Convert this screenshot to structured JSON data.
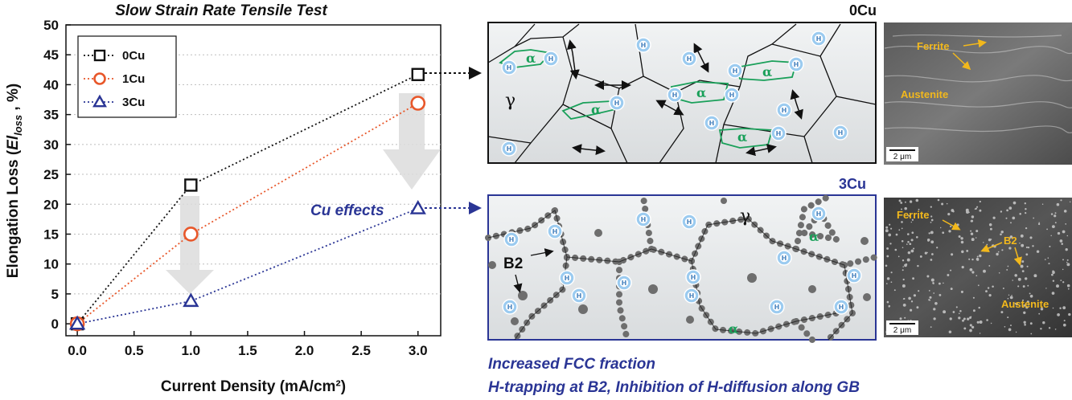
{
  "chart_data": {
    "type": "line",
    "title": "Slow Strain Rate Tensile Test",
    "xlabel": "Current Density (mA/cm²)",
    "ylabel": "Elongation Loss (El_loss , %)",
    "ylabel_prefix": "Elongation Loss (",
    "ylabel_el": "El",
    "ylabel_sub": "loss",
    "ylabel_suffix": " , %)",
    "xlim": [
      -0.1,
      3.2
    ],
    "ylim": [
      -2,
      50
    ],
    "x_ticks": [
      "0.0",
      "0.5",
      "1.0",
      "1.5",
      "2.0",
      "2.5",
      "3.0"
    ],
    "x_tick_values": [
      0,
      0.5,
      1.0,
      1.5,
      2.0,
      2.5,
      3.0
    ],
    "y_ticks": [
      "0",
      "5",
      "10",
      "15",
      "20",
      "25",
      "30",
      "35",
      "40",
      "45",
      "50"
    ],
    "y_tick_values": [
      0,
      5,
      10,
      15,
      20,
      25,
      30,
      35,
      40,
      45,
      50
    ],
    "grid": "horizontal dotted",
    "legend_position": "top-left",
    "series": [
      {
        "name": "0Cu",
        "marker": "square",
        "color": "#111111",
        "x": [
          0.0,
          1.0,
          3.0
        ],
        "y": [
          0.0,
          23.2,
          41.7
        ]
      },
      {
        "name": "1Cu",
        "marker": "circle",
        "color": "#e8572a",
        "x": [
          0.0,
          1.0,
          3.0
        ],
        "y": [
          0.0,
          15.0,
          36.9
        ]
      },
      {
        "name": "3Cu",
        "marker": "triangle",
        "color": "#2a3595",
        "x": [
          0.0,
          1.0,
          3.0
        ],
        "y": [
          0.0,
          3.8,
          19.3
        ]
      }
    ],
    "annotations": [
      "Cu effects"
    ]
  },
  "colors": {
    "navy": "#2a3595",
    "orange": "#e8572a",
    "phase_green": "#1aa05a",
    "b2_gray": "#6e6e6e",
    "hydrogen_blue": "#9bcbf0",
    "sem_label": "#f2b81c"
  },
  "panels": {
    "top_label": "0Cu",
    "bottom_label": "3Cu",
    "gamma": "γ",
    "alpha": "α",
    "hydrogen": "H",
    "b2_label": "B2"
  },
  "micrographs": {
    "top": {
      "labels": [
        "Ferrite",
        "Austenite"
      ],
      "scale_bar": "2 μm"
    },
    "bottom": {
      "labels": [
        "Ferrite",
        "B2",
        "Austenite"
      ],
      "scale_bar": "2 μm"
    }
  },
  "notes": {
    "line1": "Increased FCC fraction",
    "line2": "H-trapping at B2, Inhibition of H-diffusion along GB"
  }
}
